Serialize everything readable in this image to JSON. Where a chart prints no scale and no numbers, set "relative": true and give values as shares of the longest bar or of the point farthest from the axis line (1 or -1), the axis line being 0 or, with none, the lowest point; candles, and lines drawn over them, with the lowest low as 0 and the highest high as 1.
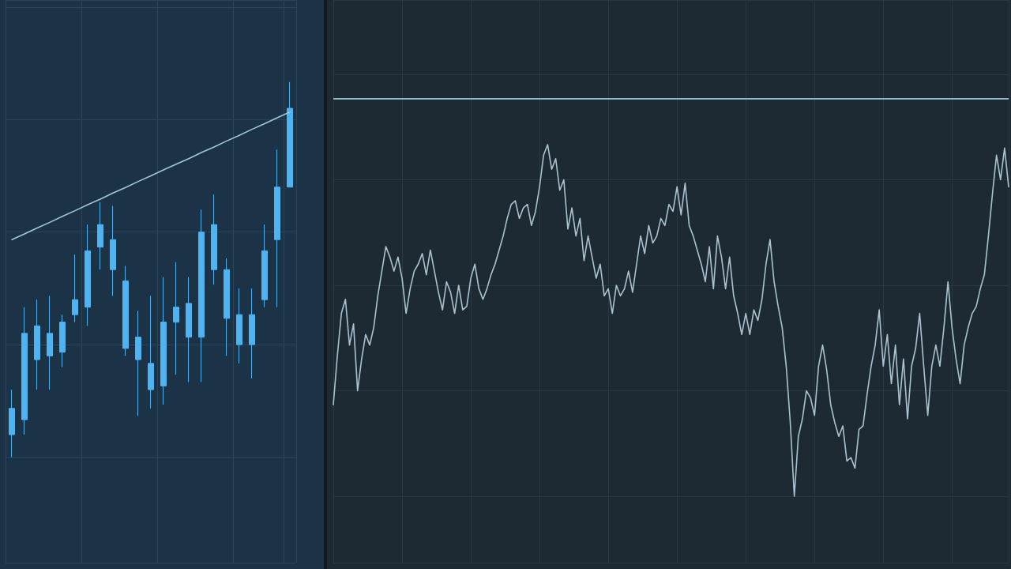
{
  "chart_data": [
    {
      "type": "candlestick",
      "relative": true,
      "color": "#4fb3ef",
      "categories": [
        null,
        null,
        null,
        null,
        null,
        null,
        null,
        null,
        null,
        null,
        null,
        null,
        null,
        null,
        null,
        null,
        null,
        null,
        null,
        null,
        null,
        null,
        null
      ],
      "ohlc": [
        [
          0.06,
          0.18,
          0,
          0.13
        ],
        [
          0.1,
          0.4,
          0.06,
          0.33
        ],
        [
          0.26,
          0.42,
          0.18,
          0.35
        ],
        [
          0.27,
          0.43,
          0.18,
          0.33
        ],
        [
          0.28,
          0.38,
          0.24,
          0.36
        ],
        [
          0.38,
          0.54,
          0.36,
          0.42
        ],
        [
          0.4,
          0.62,
          0.35,
          0.55
        ],
        [
          0.56,
          0.68,
          0.5,
          0.62
        ],
        [
          0.5,
          0.67,
          0.43,
          0.58
        ],
        [
          0.29,
          0.51,
          0.27,
          0.47
        ],
        [
          0.26,
          0.39,
          0.11,
          0.32
        ],
        [
          0.18,
          0.43,
          0.13,
          0.25
        ],
        [
          0.19,
          0.48,
          0.14,
          0.36
        ],
        [
          0.36,
          0.52,
          0.22,
          0.4
        ],
        [
          0.32,
          0.48,
          0.2,
          0.41
        ],
        [
          0.32,
          0.66,
          0.2,
          0.6
        ],
        [
          0.5,
          0.7,
          0.46,
          0.62
        ],
        [
          0.37,
          0.53,
          0.27,
          0.5
        ],
        [
          0.3,
          0.45,
          0.25,
          0.38
        ],
        [
          0.3,
          0.45,
          0.21,
          0.38
        ],
        [
          0.42,
          0.62,
          0.4,
          0.55
        ],
        [
          0.58,
          0.82,
          0.4,
          0.72
        ],
        [
          0.72,
          1.0,
          0.72,
          0.93
        ]
      ],
      "series": [
        {
          "type": "line",
          "color": "#9fc8d8",
          "values": [
            0.58,
            0.595,
            0.611,
            0.626,
            0.642,
            0.657,
            0.673,
            0.688,
            0.704,
            0.719,
            0.735,
            0.75,
            0.766,
            0.781,
            0.796,
            0.812,
            0.827,
            0.843,
            0.858,
            0.874,
            0.889,
            0.905,
            0.92
          ]
        }
      ],
      "grid": true,
      "marker": "none"
    },
    {
      "type": "line",
      "relative": true,
      "color": "#a9c4d0",
      "categories": [
        null,
        null,
        null,
        null,
        null,
        null,
        null,
        null,
        null,
        null,
        null,
        null,
        null,
        null,
        null,
        null,
        null,
        null,
        null,
        null,
        null,
        null,
        null,
        null,
        null,
        null,
        null,
        null,
        null,
        null,
        null,
        null,
        null,
        null,
        null,
        null,
        null,
        null,
        null,
        null,
        null,
        null,
        null,
        null,
        null,
        null,
        null,
        null,
        null,
        null,
        null,
        null,
        null,
        null,
        null,
        null,
        null,
        null,
        null,
        null,
        null,
        null,
        null,
        null,
        null,
        null,
        null,
        null,
        null,
        null,
        null,
        null,
        null,
        null,
        null,
        null,
        null,
        null,
        null,
        null,
        null,
        null,
        null,
        null,
        null,
        null,
        null,
        null,
        null,
        null,
        null,
        null,
        null,
        null,
        null,
        null,
        null,
        null,
        null,
        null,
        null,
        null,
        null,
        null,
        null,
        null,
        null,
        null,
        null,
        null,
        null,
        null,
        null,
        null,
        null,
        null,
        null,
        null,
        null,
        null,
        null,
        null,
        null,
        null,
        null,
        null,
        null,
        null,
        null,
        null,
        null,
        null,
        null,
        null,
        null,
        null,
        null,
        null,
        null,
        null,
        null,
        null,
        null,
        null,
        null,
        null,
        null,
        null,
        null,
        null,
        null,
        null,
        null,
        null,
        null,
        null,
        null,
        null,
        null,
        null,
        null,
        null,
        null,
        null,
        null,
        null,
        null,
        null
      ],
      "values": [
        0.26,
        0.4,
        0.52,
        0.56,
        0.43,
        0.49,
        0.3,
        0.39,
        0.46,
        0.43,
        0.48,
        0.57,
        0.64,
        0.71,
        0.68,
        0.64,
        0.68,
        0.62,
        0.52,
        0.59,
        0.64,
        0.66,
        0.69,
        0.63,
        0.7,
        0.64,
        0.58,
        0.53,
        0.61,
        0.58,
        0.52,
        0.6,
        0.53,
        0.54,
        0.62,
        0.66,
        0.59,
        0.56,
        0.59,
        0.63,
        0.66,
        0.7,
        0.74,
        0.79,
        0.83,
        0.84,
        0.79,
        0.82,
        0.83,
        0.77,
        0.81,
        0.88,
        0.97,
        1,
        0.93,
        0.96,
        0.87,
        0.9,
        0.76,
        0.82,
        0.74,
        0.79,
        0.67,
        0.74,
        0.68,
        0.62,
        0.66,
        0.57,
        0.59,
        0.52,
        0.6,
        0.57,
        0.59,
        0.64,
        0.58,
        0.66,
        0.74,
        0.69,
        0.77,
        0.72,
        0.74,
        0.79,
        0.77,
        0.83,
        0.81,
        0.88,
        0.8,
        0.89,
        0.77,
        0.74,
        0.7,
        0.66,
        0.61,
        0.71,
        0.59,
        0.74,
        0.68,
        0.59,
        0.68,
        0.57,
        0.52,
        0.46,
        0.52,
        0.46,
        0.53,
        0.5,
        0.56,
        0.66,
        0.73,
        0.61,
        0.54,
        0.48,
        0.37,
        0.21,
        0,
        0.17,
        0.22,
        0.3,
        0.28,
        0.23,
        0.37,
        0.43,
        0.36,
        0.26,
        0.21,
        0.17,
        0.2,
        0.1,
        0.11,
        0.08,
        0.19,
        0.2,
        0.29,
        0.37,
        0.43,
        0.53,
        0.37,
        0.46,
        0.32,
        0.43,
        0.26,
        0.39,
        0.22,
        0.37,
        0.42,
        0.52,
        0.37,
        0.23,
        0.37,
        0.43,
        0.37,
        0.48,
        0.61,
        0.48,
        0.39,
        0.32,
        0.43,
        0.48,
        0.52,
        0.54,
        0.59,
        0.63,
        0.74,
        0.86,
        0.97,
        0.9,
        0.99,
        0.88
      ],
      "ref_lines": [
        {
          "axis": "y",
          "value": 1.13,
          "color": "#8fb8c8"
        }
      ],
      "grid": true,
      "marker": "none"
    }
  ]
}
